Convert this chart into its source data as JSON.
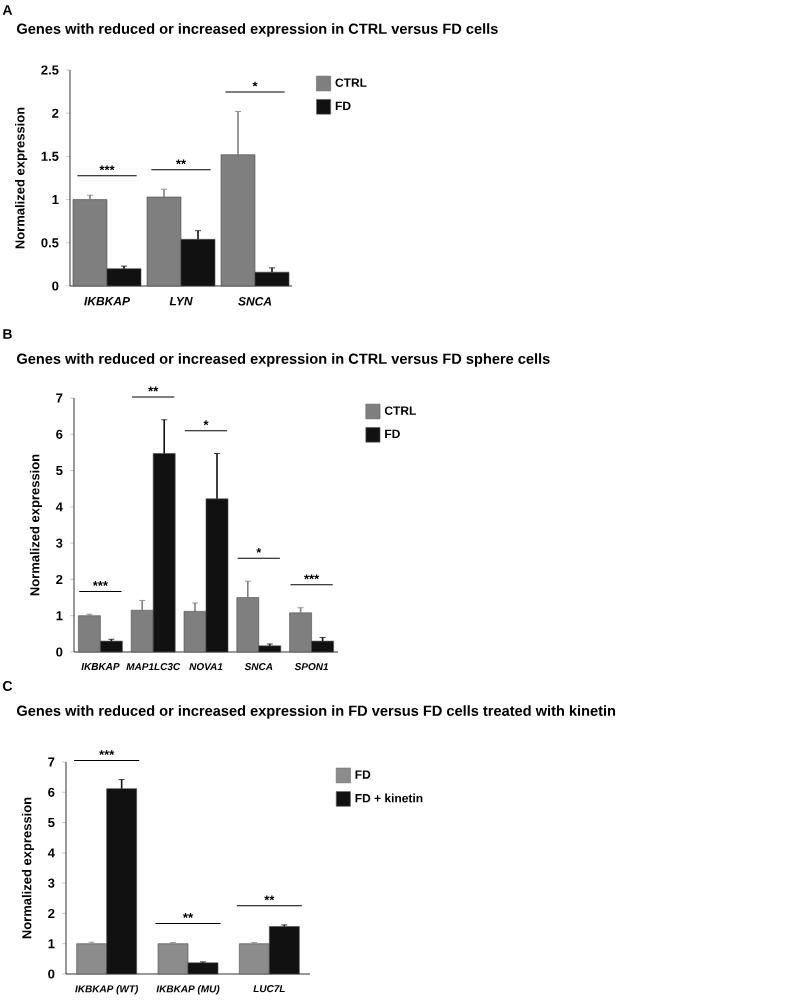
{
  "chart_data": [
    {
      "type": "bar",
      "title": "Genes with reduced or increased expression in CTRL versus FD cells",
      "ylabel": "Normalized expression",
      "categories": [
        "IKBKAP",
        "LYN",
        "SNCA"
      ],
      "series": [
        {
          "name": "CTRL",
          "color": "#7f7f7f",
          "values": [
            1.0,
            1.03,
            1.52
          ],
          "errors": [
            0.05,
            0.09,
            0.5
          ]
        },
        {
          "name": "FD",
          "color": "#111111",
          "values": [
            0.2,
            0.54,
            0.16
          ],
          "errors": [
            0.03,
            0.1,
            0.05
          ]
        }
      ],
      "ylim": [
        0,
        2.5
      ],
      "yticks": [
        0,
        0.5,
        1,
        1.5,
        2,
        2.5
      ],
      "legend": "right",
      "grid": false,
      "annotations": [
        "A",
        "***",
        "**",
        "*"
      ]
    },
    {
      "type": "bar",
      "title": "Genes with reduced or increased expression in CTRL versus  FD sphere cells",
      "ylabel": "Normalized expression",
      "categories": [
        "IKBKAP",
        "MAP1LC3C",
        "NOVA1",
        "SNCA",
        "SPON1"
      ],
      "series": [
        {
          "name": "CTRL",
          "color": "#7f7f7f",
          "values": [
            1.0,
            1.15,
            1.12,
            1.5,
            1.08
          ],
          "errors": [
            0.04,
            0.27,
            0.23,
            0.45,
            0.14
          ]
        },
        {
          "name": "FD",
          "color": "#111111",
          "values": [
            0.3,
            5.47,
            4.22,
            0.17,
            0.3
          ],
          "errors": [
            0.05,
            0.93,
            1.25,
            0.05,
            0.1
          ]
        }
      ],
      "ylim": [
        0,
        7
      ],
      "yticks": [
        0,
        1,
        2,
        3,
        4,
        5,
        6,
        7
      ],
      "legend": "right",
      "grid": false,
      "annotations": [
        "B",
        "***",
        "**",
        "*",
        "*",
        "***"
      ]
    },
    {
      "type": "bar",
      "title": "Genes  with reduced or increased expression in FD versus  FD cells treated with kinetin",
      "ylabel": "Normalized expression",
      "categories": [
        "IKBKAP (WT)",
        "IKBKAP (MU)",
        "LUC7L"
      ],
      "series": [
        {
          "name": "FD",
          "color": "#8c8c8c",
          "values": [
            1.0,
            1.0,
            1.0
          ],
          "errors": [
            0.05,
            0.04,
            0.04
          ]
        },
        {
          "name": "FD + kinetin",
          "color": "#111111",
          "values": [
            6.12,
            0.37,
            1.57
          ],
          "errors": [
            0.3,
            0.03,
            0.05
          ]
        }
      ],
      "ylim": [
        0,
        7
      ],
      "yticks": [
        0,
        1,
        2,
        3,
        4,
        5,
        6,
        7
      ],
      "legend": "right",
      "grid": false,
      "annotations": [
        "C",
        "***",
        "**",
        "**"
      ]
    }
  ]
}
